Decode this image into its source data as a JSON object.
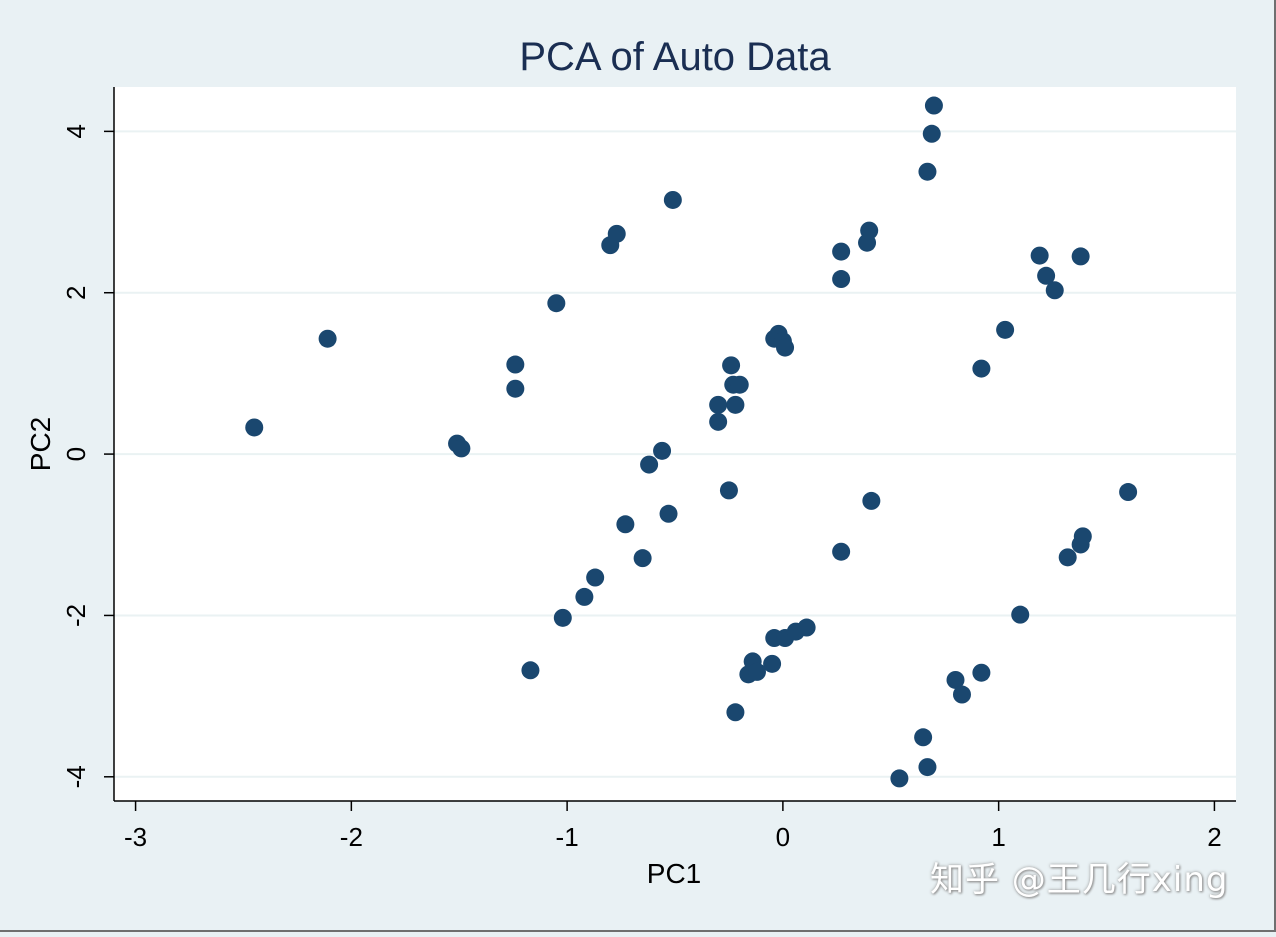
{
  "chart_data": {
    "type": "scatter",
    "title": "PCA of Auto Data",
    "xlabel": "PC1",
    "ylabel": "PC2",
    "xlim": [
      -3.1,
      2.1
    ],
    "ylim": [
      -4.3,
      4.55
    ],
    "xticks": [
      -3,
      -2,
      -1,
      0,
      1,
      2
    ],
    "yticks": [
      -4,
      -2,
      0,
      2,
      4
    ],
    "grid": "horizontal",
    "marker_color": "#1a476f",
    "points": [
      [
        -2.45,
        0.33
      ],
      [
        -2.11,
        1.43
      ],
      [
        -1.51,
        0.13
      ],
      [
        -1.49,
        0.07
      ],
      [
        -1.24,
        1.11
      ],
      [
        -1.24,
        0.81
      ],
      [
        -1.05,
        1.87
      ],
      [
        -0.8,
        2.59
      ],
      [
        -0.77,
        2.73
      ],
      [
        -0.51,
        3.15
      ],
      [
        -1.17,
        -2.68
      ],
      [
        -1.02,
        -2.03
      ],
      [
        -0.92,
        -1.77
      ],
      [
        -0.87,
        -1.53
      ],
      [
        -0.73,
        -0.87
      ],
      [
        -0.65,
        -1.29
      ],
      [
        -0.62,
        -0.13
      ],
      [
        -0.56,
        0.04
      ],
      [
        -0.53,
        -0.74
      ],
      [
        -0.3,
        0.61
      ],
      [
        -0.3,
        0.4
      ],
      [
        -0.25,
        -0.45
      ],
      [
        -0.24,
        1.1
      ],
      [
        -0.23,
        0.86
      ],
      [
        -0.22,
        0.61
      ],
      [
        -0.2,
        0.86
      ],
      [
        -0.04,
        1.43
      ],
      [
        -0.02,
        1.49
      ],
      [
        0.0,
        1.4
      ],
      [
        0.01,
        1.32
      ],
      [
        -0.22,
        -3.2
      ],
      [
        -0.16,
        -2.73
      ],
      [
        -0.14,
        -2.57
      ],
      [
        -0.12,
        -2.7
      ],
      [
        -0.05,
        -2.6
      ],
      [
        -0.04,
        -2.28
      ],
      [
        0.01,
        -2.28
      ],
      [
        0.06,
        -2.2
      ],
      [
        0.11,
        -2.15
      ],
      [
        0.27,
        2.51
      ],
      [
        0.27,
        2.17
      ],
      [
        0.27,
        -1.21
      ],
      [
        0.39,
        2.62
      ],
      [
        0.4,
        2.77
      ],
      [
        0.41,
        -0.58
      ],
      [
        0.54,
        -4.02
      ],
      [
        0.65,
        -3.51
      ],
      [
        0.67,
        -3.88
      ],
      [
        0.67,
        3.5
      ],
      [
        0.69,
        3.97
      ],
      [
        0.7,
        4.32
      ],
      [
        0.8,
        -2.8
      ],
      [
        0.83,
        -2.98
      ],
      [
        0.92,
        1.06
      ],
      [
        0.92,
        -2.71
      ],
      [
        1.03,
        1.54
      ],
      [
        1.1,
        -1.99
      ],
      [
        1.19,
        2.46
      ],
      [
        1.22,
        2.21
      ],
      [
        1.26,
        2.03
      ],
      [
        1.32,
        -1.28
      ],
      [
        1.38,
        2.45
      ],
      [
        1.38,
        -1.12
      ],
      [
        1.39,
        -1.02
      ],
      [
        1.6,
        -0.47
      ]
    ]
  },
  "watermark": "知乎 @王几行xing"
}
